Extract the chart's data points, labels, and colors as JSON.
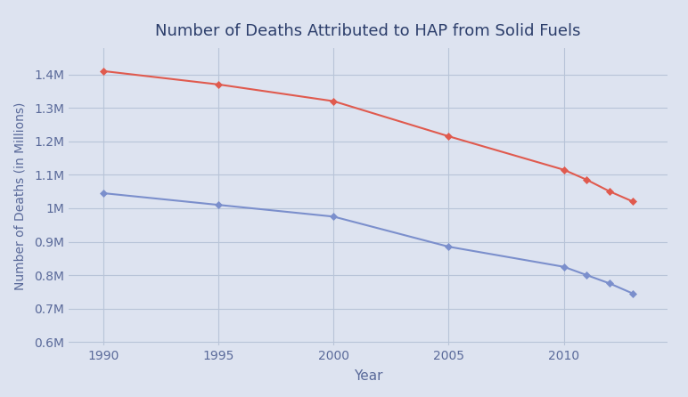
{
  "title": "Number of Deaths Attributed to HAP from Solid Fuels",
  "xlabel": "Year",
  "ylabel": "Number of Deaths (in Millions)",
  "background_color": "#dde3f0",
  "fig_background": "#dde3f0",
  "red_line": {
    "x": [
      1990,
      1995,
      2000,
      2005,
      2010,
      2011,
      2012,
      2013
    ],
    "y": [
      1.41,
      1.37,
      1.32,
      1.215,
      1.115,
      1.085,
      1.05,
      1.02
    ],
    "color": "#e05a4e",
    "marker": "D",
    "markersize": 4
  },
  "blue_line": {
    "x": [
      1990,
      1995,
      2000,
      2005,
      2010,
      2011,
      2012,
      2013
    ],
    "y": [
      1.045,
      1.01,
      0.975,
      0.885,
      0.825,
      0.8,
      0.775,
      0.745
    ],
    "color": "#7b8fcc",
    "marker": "D",
    "markersize": 4
  },
  "xlim": [
    1988.5,
    2014.5
  ],
  "ylim": [
    0.59,
    1.48
  ],
  "yticks": [
    0.6,
    0.7,
    0.8,
    0.9,
    1.0,
    1.1,
    1.2,
    1.3,
    1.4
  ],
  "xticks": [
    1990,
    1995,
    2000,
    2005,
    2010
  ],
  "title_color": "#2c3e6b",
  "axis_label_color": "#5a6a9a",
  "tick_color": "#5a6a9a",
  "grid_color": "#b8c4d8",
  "title_fontsize": 13,
  "label_fontsize": 11,
  "tick_fontsize": 10
}
